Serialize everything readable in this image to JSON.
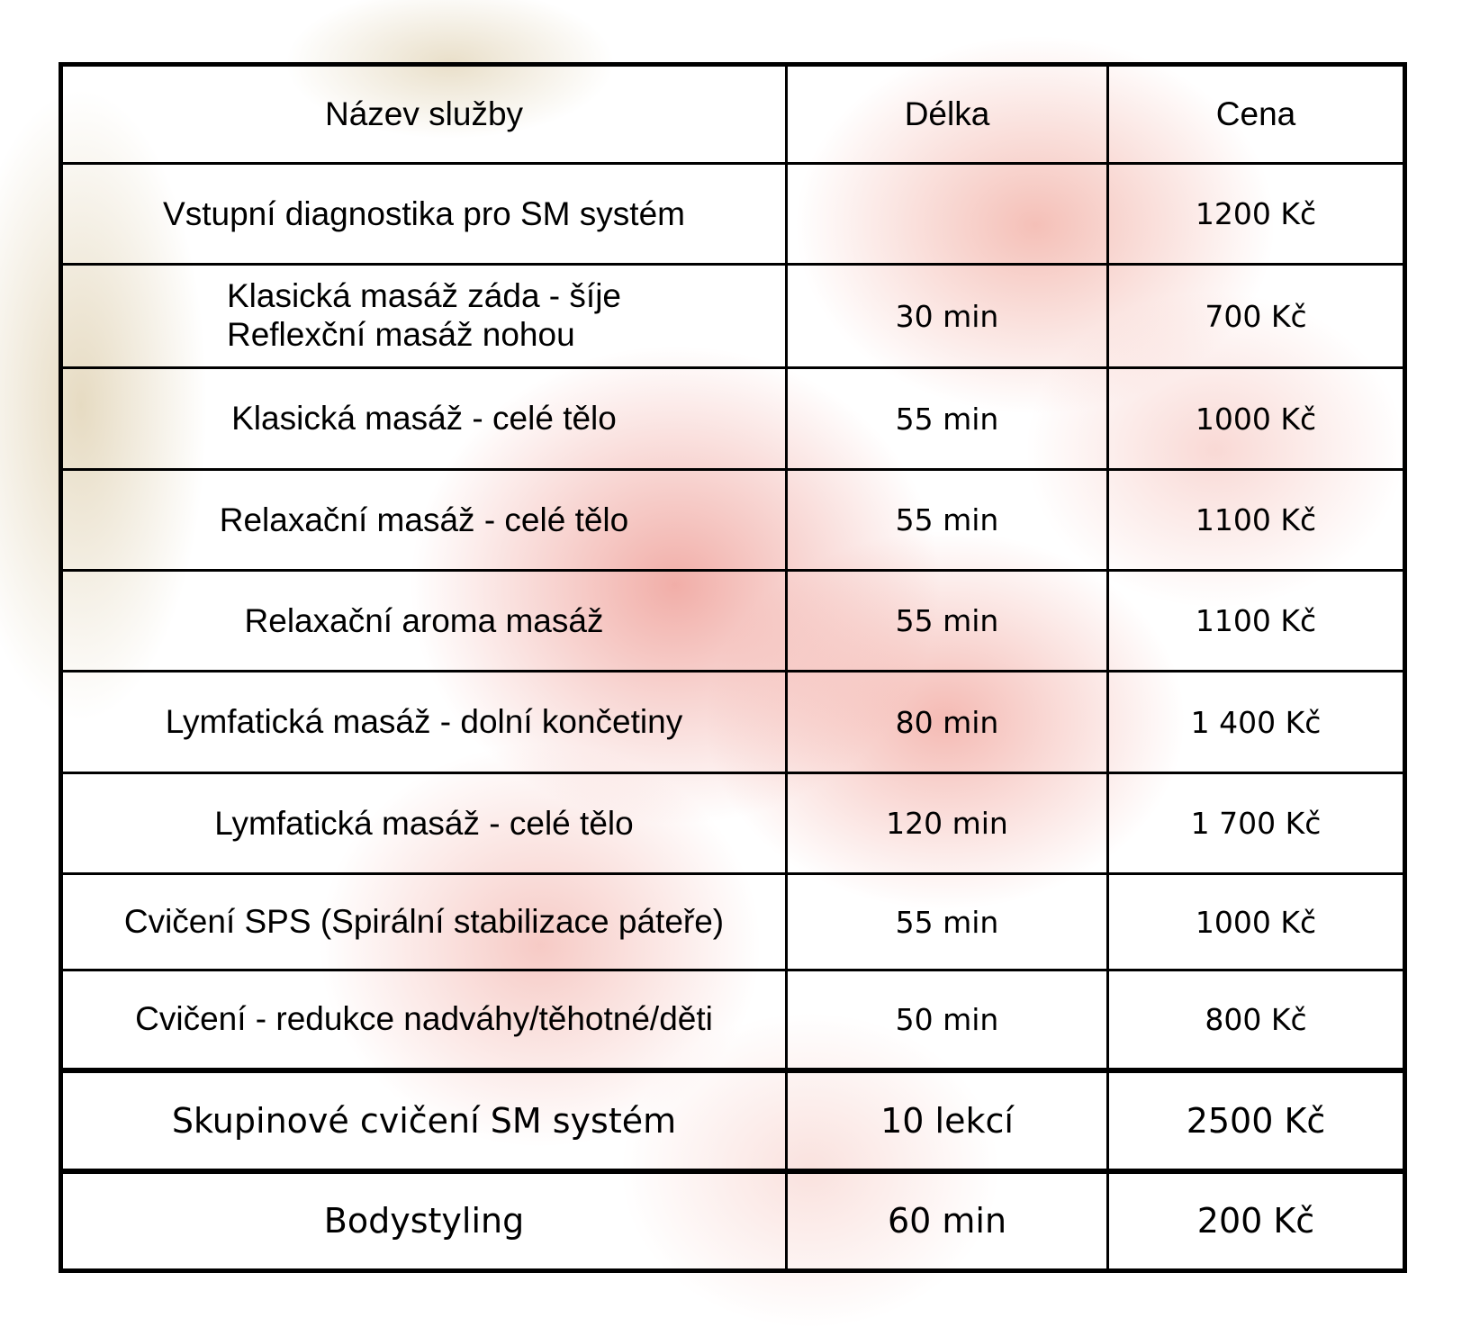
{
  "headers": [
    "Název služby",
    "Délka",
    "Cena"
  ],
  "rows": [
    {
      "name": "Vstupní diagnostika pro SM systém",
      "duration": "",
      "price": "1200 Kč"
    },
    {
      "name": "Klasická masáž záda - šíje",
      "name2": "Reflexční masáž nohou",
      "duration": "30 min",
      "price": "700 Kč"
    },
    {
      "name": "Klasická masáž - celé tělo",
      "duration": "55 min",
      "price": "1000 Kč"
    },
    {
      "name": "Relaxační masáž - celé tělo",
      "duration": "55 min",
      "price": "1100 Kč"
    },
    {
      "name": "Relaxační aroma masáž",
      "duration": "55 min",
      "price": "1100 Kč"
    },
    {
      "name": "Lymfatická masáž - dolní končetiny",
      "duration": "80 min",
      "price": "1 400 Kč"
    },
    {
      "name": "Lymfatická masáž - celé tělo",
      "duration": "120 min",
      "price": "1 700 Kč"
    },
    {
      "name": "Cvičení SPS (Spirální stabilizace páteře)",
      "duration": "55 min",
      "price": "1000 Kč"
    },
    {
      "name": "Cvičení - redukce nadváhy/těhotné/děti",
      "duration": "50 min",
      "price": "800 Kč"
    },
    {
      "name": "Skupinové cvičení SM systém",
      "duration": "10 lekcí",
      "price": "2500 Kč"
    },
    {
      "name": "Bodystyling",
      "duration": "60 min",
      "price": "200 Kč"
    }
  ],
  "colors": {
    "watercolor": "#e8786e",
    "glitter": "#c8af78"
  }
}
